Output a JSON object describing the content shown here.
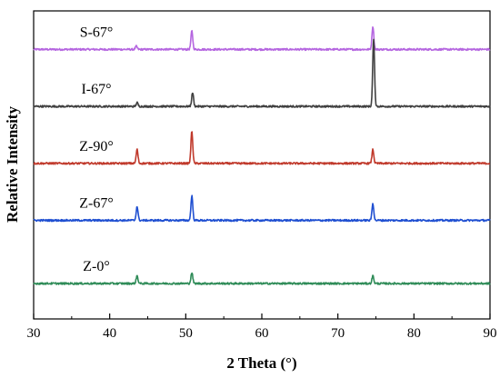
{
  "chart_data": {
    "type": "line",
    "title": "",
    "xlabel": "2 Theta (°)",
    "ylabel": "Relative Intensity",
    "xlim": [
      30,
      90
    ],
    "xticks": [
      "30",
      "40",
      "50",
      "60",
      "70",
      "80",
      "90"
    ],
    "yticks_shown": false,
    "legend": "none",
    "series": [
      {
        "name": "S-67°",
        "color": "#b566e0",
        "baseline": 0.875,
        "peaks": [
          {
            "x": 43.5,
            "height": 0.01
          },
          {
            "x": 50.8,
            "height": 0.06
          },
          {
            "x": 74.6,
            "height": 0.075
          }
        ]
      },
      {
        "name": "I-67°",
        "color": "#404040",
        "baseline": 0.69,
        "peaks": [
          {
            "x": 43.6,
            "height": 0.012
          },
          {
            "x": 50.9,
            "height": 0.045
          },
          {
            "x": 74.7,
            "height": 0.22
          }
        ]
      },
      {
        "name": "Z-90°",
        "color": "#c0392b",
        "baseline": 0.505,
        "peaks": [
          {
            "x": 43.6,
            "height": 0.045
          },
          {
            "x": 50.8,
            "height": 0.105
          },
          {
            "x": 74.6,
            "height": 0.045
          }
        ]
      },
      {
        "name": "Z-67°",
        "color": "#1f4fd1",
        "baseline": 0.32,
        "peaks": [
          {
            "x": 43.6,
            "height": 0.045
          },
          {
            "x": 50.8,
            "height": 0.08
          },
          {
            "x": 74.6,
            "height": 0.055
          }
        ]
      },
      {
        "name": "Z-0°",
        "color": "#2e8b57",
        "baseline": 0.115,
        "peaks": [
          {
            "x": 43.6,
            "height": 0.025
          },
          {
            "x": 50.8,
            "height": 0.035
          },
          {
            "x": 74.6,
            "height": 0.025
          }
        ]
      }
    ]
  }
}
